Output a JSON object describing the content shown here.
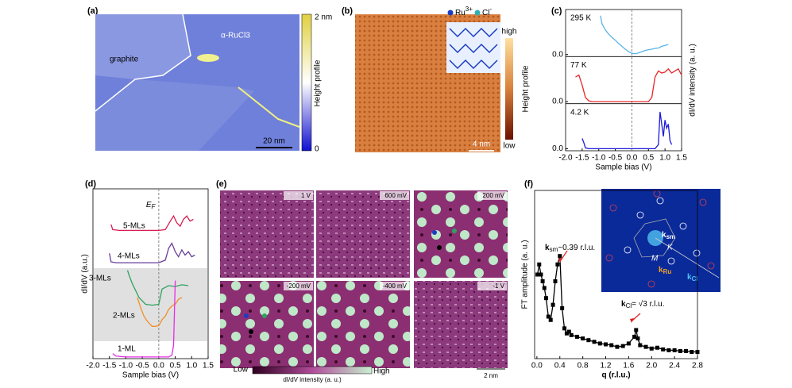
{
  "panel_labels": [
    "(a)",
    "(b)",
    "(c)",
    "(d)",
    "(e)",
    "(f)"
  ],
  "image_a": {
    "labels": [
      "graphite",
      "α-RuCl3"
    ],
    "scale_bar": "20 nm",
    "colorbar": {
      "max": "2 nm",
      "min": "0",
      "title": "Height  profile"
    }
  },
  "image_b": {
    "legend": [
      {
        "ion": "Ru",
        "charge": "3+"
      },
      {
        "ion": "Cl",
        "charge": "-"
      }
    ],
    "scale_bar": "4 nm",
    "colorbar": {
      "max": "high",
      "min": "low",
      "title": "Height profile"
    }
  },
  "image_e": {
    "tiles": [
      "1 V",
      "600 mV",
      "200 mV",
      "-200 mV",
      "-400 mV",
      "-1 V"
    ],
    "colorbar": {
      "min": "Low",
      "max": "High",
      "title": "dI/dV intensity  (a. u.)"
    },
    "scale_bar": "2 nm"
  },
  "image_f_inset": {
    "labels": [
      {
        "main": "k",
        "sub": "sm"
      },
      {
        "main": "K"
      },
      {
        "main": "M"
      },
      {
        "main": "k",
        "sub": "Ru"
      },
      {
        "main": "k",
        "sub": "Cl"
      }
    ]
  },
  "chart_data": [
    {
      "type": "line",
      "xlabel": "Sample bias (V)",
      "ylabel": "dI/dV intensity (a. u.)",
      "xlim": [
        -2.0,
        1.5
      ],
      "xticks": [
        {
          "value": -2,
          "label": "-2.0"
        },
        -1.5,
        {
          "value": -1,
          "label": "-1.0"
        },
        -0.5,
        {
          "value": 0,
          "label": "0.0"
        },
        0.5,
        {
          "value": 1,
          "label": "1.0"
        },
        1.5
      ],
      "reference_line_x": 0,
      "subplots": [
        {
          "name": "295 K",
          "color": "#5ab4e6",
          "ylim": [
            -0.05,
            1.1
          ],
          "yticks": [
            {
              "value": 0,
              "label": "0.0"
            }
          ],
          "x": [
            -0.95,
            -0.9,
            -0.8,
            -0.7,
            -0.6,
            -0.5,
            -0.4,
            -0.3,
            -0.2,
            -0.1,
            0,
            0.1,
            0.2,
            0.3,
            0.4,
            0.5,
            0.6,
            0.7,
            0.8,
            0.9,
            1.0,
            1.1
          ],
          "values": [
            0.95,
            0.75,
            0.6,
            0.5,
            0.42,
            0.35,
            0.27,
            0.2,
            0.13,
            0.07,
            0.03,
            0.02,
            0.04,
            0.07,
            0.1,
            0.12,
            0.13,
            0.15,
            0.16,
            0.2,
            0.22,
            0.25
          ]
        },
        {
          "name": "77 K",
          "color": "#e8262a",
          "ylim": [
            -0.05,
            1.1
          ],
          "yticks": [
            {
              "value": 0,
              "label": "0.0"
            }
          ],
          "x": [
            -1.7,
            -1.6,
            -1.5,
            -1.4,
            -1.3,
            -1.2,
            -1.0,
            -0.5,
            0,
            0.5,
            0.6,
            0.7,
            0.8,
            0.9,
            1.0,
            1.1,
            1.2,
            1.3,
            1.4,
            1.5
          ],
          "values": [
            0.6,
            0.65,
            0.4,
            0.1,
            0.02,
            0,
            0,
            0,
            0,
            0,
            0.1,
            0.6,
            0.75,
            0.7,
            0.72,
            0.8,
            0.7,
            0.75,
            0.8,
            0.65
          ]
        },
        {
          "name": "4.2 K",
          "color": "#1a1adb",
          "ylim": [
            -0.05,
            1.1
          ],
          "yticks": [
            {
              "value": 0,
              "label": "0.0"
            }
          ],
          "x": [
            -1.5,
            -1.45,
            -1.4,
            -1.3,
            -1.0,
            -0.5,
            0,
            0.5,
            0.7,
            0.8,
            0.85,
            0.9,
            0.95,
            1.0,
            1.05,
            1.1,
            1.15,
            1.2
          ],
          "values": [
            0.25,
            0.15,
            0.02,
            0,
            0,
            0,
            0,
            0,
            0,
            0.1,
            0.9,
            0.6,
            0.3,
            0.7,
            0.5,
            0.6,
            0.2,
            0.1
          ]
        }
      ]
    },
    {
      "type": "line",
      "xlabel": "Sample bias (V)",
      "ylabel": "dI/dV (a.u.)",
      "xlim": [
        -2.0,
        1.5
      ],
      "ylim": [
        0,
        10
      ],
      "xticks": [
        {
          "value": -2,
          "label": "-2.0"
        },
        -1.5,
        {
          "value": -1,
          "label": "-1.0"
        },
        -0.5,
        {
          "value": 0,
          "label": "0.0"
        },
        0.5,
        {
          "value": 1,
          "label": "1.0"
        },
        1.5
      ],
      "reference_line_x": 0,
      "annotation": {
        "main": "E",
        "sub": "F"
      },
      "series": [
        {
          "name": "5-MLs",
          "color": "#d81b50",
          "x": [
            -1.45,
            -1.4,
            -1.2,
            -0.5,
            0,
            0.2,
            0.35,
            0.45,
            0.55,
            0.65,
            0.75,
            0.85,
            0.95,
            1.05
          ],
          "values": [
            7.9,
            7.6,
            7.55,
            7.55,
            7.55,
            7.6,
            8.1,
            8.4,
            8.0,
            7.8,
            8.2,
            8.4,
            8.1,
            8.2
          ]
        },
        {
          "name": "4-MLs",
          "color": "#6a3d9a",
          "x": [
            -1.5,
            -1.45,
            -1.3,
            -0.5,
            0,
            0.2,
            0.3,
            0.4,
            0.5,
            0.6,
            0.7,
            0.8,
            0.9,
            1.0,
            1.1
          ],
          "values": [
            6.2,
            5.7,
            5.65,
            5.65,
            5.65,
            5.8,
            6.5,
            6.8,
            6.3,
            6.0,
            6.4,
            6.1,
            6.3,
            6.0,
            6.1
          ]
        },
        {
          "name": "3-MLs",
          "color": "#2ca25f",
          "x": [
            -0.95,
            -0.9,
            -0.8,
            -0.6,
            -0.4,
            -0.2,
            0,
            0.1,
            0.3,
            0.5,
            0.7,
            0.9
          ],
          "values": [
            5.2,
            4.9,
            4.4,
            3.6,
            3.2,
            3.15,
            3.2,
            4.1,
            4.3,
            4.25,
            4.35,
            4.3
          ]
        },
        {
          "name": "2-MLs",
          "color": "#f28e2b",
          "x": [
            -0.65,
            -0.55,
            -0.45,
            -0.35,
            -0.2,
            -0.1,
            0,
            0.1,
            0.2,
            0.3,
            0.4,
            0.5,
            0.6,
            0.7
          ],
          "values": [
            3.6,
            3.0,
            2.5,
            2.2,
            1.9,
            1.9,
            1.95,
            2.3,
            2.5,
            2.9,
            3.1,
            3.2,
            3.5,
            3.6
          ]
        },
        {
          "name": "1-ML",
          "color": "#e62ce6",
          "x": [
            -1.4,
            -1.3,
            -1.0,
            0,
            0.3,
            0.4,
            0.45,
            0.5
          ],
          "values": [
            0.3,
            0.15,
            0.1,
            0.1,
            0.1,
            0.2,
            0.8,
            4.6
          ]
        }
      ]
    },
    {
      "type": "line",
      "marker": "square",
      "xlabel": "q (r.l.u.)",
      "ylabel": "FT amplitude (a. u.)",
      "xlim": [
        -0.04,
        2.8
      ],
      "ylim": [
        0,
        10
      ],
      "xticks": [
        {
          "value": 0,
          "label": "0.0"
        },
        0.4,
        0.8,
        1.2,
        1.6,
        {
          "value": 2,
          "label": "2.0"
        },
        2.4,
        2.8
      ],
      "annotations": [
        {
          "main": "k",
          "sub": "sm",
          "text": "~0.39 r.l.u."
        },
        {
          "main": "k",
          "sub": "Cl",
          "text": "= √3 r.l.u."
        }
      ],
      "series": [
        {
          "color": "#000000",
          "x": [
            0.01,
            0.04,
            0.07,
            0.1,
            0.13,
            0.16,
            0.2,
            0.24,
            0.28,
            0.32,
            0.36,
            0.4,
            0.44,
            0.48,
            0.52,
            0.56,
            0.6,
            0.7,
            0.8,
            0.9,
            1.0,
            1.1,
            1.2,
            1.3,
            1.4,
            1.5,
            1.6,
            1.7,
            1.73,
            1.76,
            1.8,
            1.9,
            2.0,
            2.1,
            2.2,
            2.3,
            2.4,
            2.5,
            2.6,
            2.7,
            2.8
          ],
          "values": [
            5.0,
            5.6,
            5.0,
            4.6,
            4.2,
            3.6,
            2.5,
            2.3,
            3.2,
            4.6,
            5.6,
            6.1,
            3.0,
            1.8,
            1.5,
            1.6,
            1.4,
            1.3,
            1.2,
            1.1,
            1.0,
            0.9,
            0.85,
            0.8,
            0.7,
            0.75,
            0.9,
            1.3,
            1.7,
            1.2,
            0.8,
            0.7,
            0.6,
            0.65,
            0.55,
            0.5,
            0.5,
            0.45,
            0.45,
            0.4,
            0.4
          ]
        }
      ]
    }
  ]
}
